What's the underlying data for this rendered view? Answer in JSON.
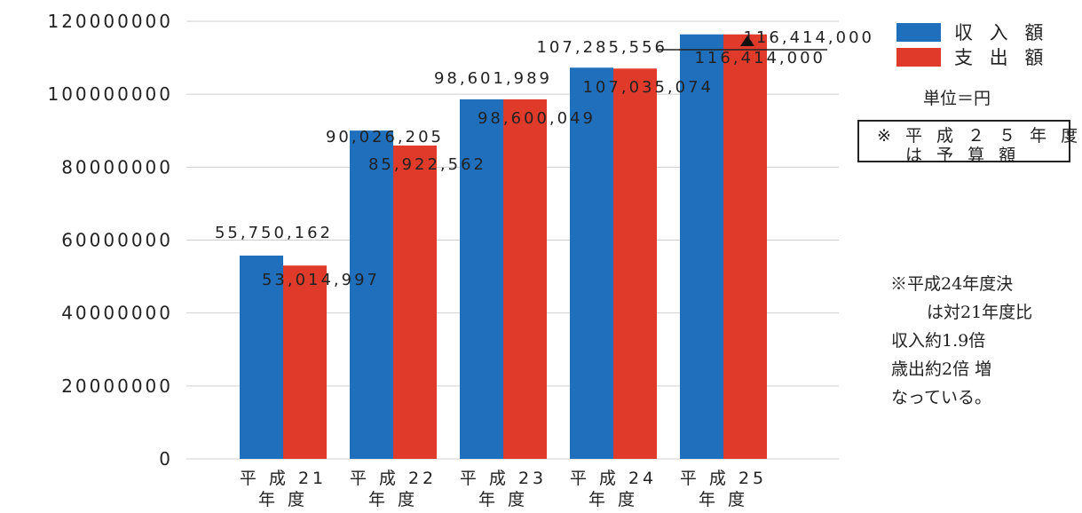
{
  "chart_data": {
    "type": "bar",
    "categories": [
      [
        "平 成 21",
        "年 度"
      ],
      [
        "平 成 22",
        "年 度"
      ],
      [
        "平 成 23",
        "年 度"
      ],
      [
        "平 成 24",
        "年 度"
      ],
      [
        "平 成 25",
        "年 度"
      ]
    ],
    "series": [
      {
        "name": "収 入 額",
        "color": "#1f6fbd",
        "values": [
          55750162,
          90026205,
          98601989,
          107285556,
          116414000
        ],
        "labels": [
          "55,750,162",
          "90,026,205",
          "98,601,989",
          "107,285,556",
          "116,414,000"
        ]
      },
      {
        "name": "支 出 額",
        "color": "#e03a2a",
        "values": [
          53014997,
          85922562,
          98600049,
          107035074,
          116414000
        ],
        "labels": [
          "53,014,997",
          "85,922,562",
          "98,600,049",
          "107,035,074",
          "116,414,000"
        ]
      }
    ],
    "yticks": [
      0,
      20000000,
      40000000,
      60000000,
      80000000,
      100000000,
      120000000
    ],
    "ytick_labels": [
      "0",
      "20000000",
      "40000000",
      "60000000",
      "80000000",
      "100000000",
      "120000000"
    ],
    "ylim": [
      0,
      120000000
    ],
    "grid": true,
    "legend": "top-right"
  },
  "unit_text": "単位＝円",
  "budget_box": {
    "line1": "※ 平 成 ２ ５ 年 度",
    "line2": "は 予 算 額"
  },
  "note_lines": [
    "※平成24年度決",
    "は対21年度比",
    "収入約1.9倍",
    "歳出約2倍 増",
    "なっている。"
  ]
}
